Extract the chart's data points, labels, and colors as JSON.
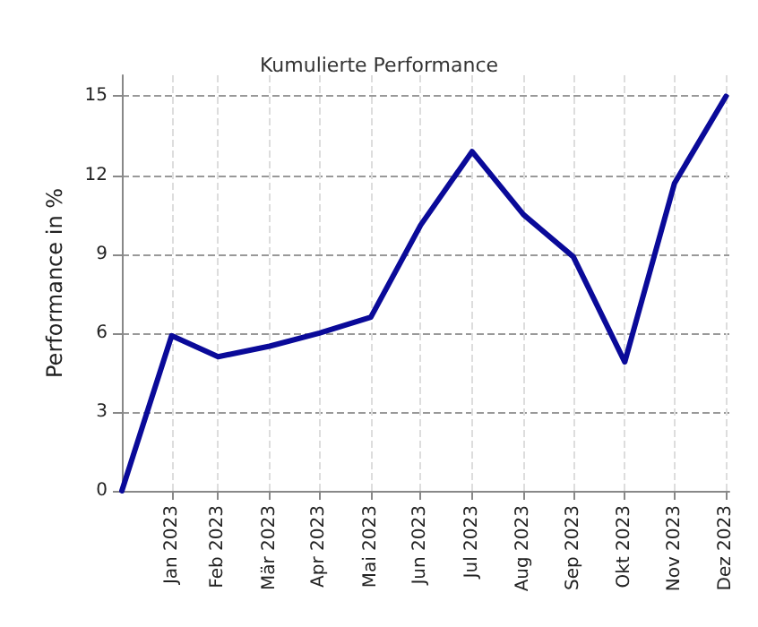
{
  "chart_data": {
    "type": "line",
    "title": "Kumulierte Performance",
    "ylabel": "Performance in %",
    "x": [
      "2023-01-01",
      "2023-01-31",
      "2023-02-28",
      "2023-03-31",
      "2023-04-30",
      "2023-05-31",
      "2023-06-30",
      "2023-07-31",
      "2023-08-31",
      "2023-09-30",
      "2023-10-31",
      "2023-11-30",
      "2023-12-31"
    ],
    "series": [
      {
        "color": "#0a0a99",
        "values": [
          0,
          5.9,
          5.1,
          5.5,
          6.0,
          6.6,
          10.1,
          12.9,
          10.5,
          8.9,
          4.9,
          11.7,
          15.0
        ]
      }
    ],
    "xlim": [
      "2023-01-01",
      "2024-01-02"
    ],
    "xticks": [
      {
        "value": "2023-01-31",
        "label": "Jan 2023"
      },
      {
        "value": "2023-02-28",
        "label": "Feb 2023"
      },
      {
        "value": "2023-03-31",
        "label": "Mär 2023"
      },
      {
        "value": "2023-04-30",
        "label": "Apr 2023"
      },
      {
        "value": "2023-05-31",
        "label": "Mai 2023"
      },
      {
        "value": "2023-06-30",
        "label": "Jun 2023"
      },
      {
        "value": "2023-07-31",
        "label": "Jul 2023"
      },
      {
        "value": "2023-08-31",
        "label": "Aug 2023"
      },
      {
        "value": "2023-09-30",
        "label": "Sep 2023"
      },
      {
        "value": "2023-10-31",
        "label": "Okt 2023"
      },
      {
        "value": "2023-11-30",
        "label": "Nov 2023"
      },
      {
        "value": "2023-12-31",
        "label": "Dez 2023"
      }
    ],
    "ylim": [
      0,
      15.8
    ],
    "yticks": [
      0,
      3,
      6,
      9,
      12,
      15
    ],
    "grid": true,
    "marker": "none",
    "line_style": "solid"
  }
}
